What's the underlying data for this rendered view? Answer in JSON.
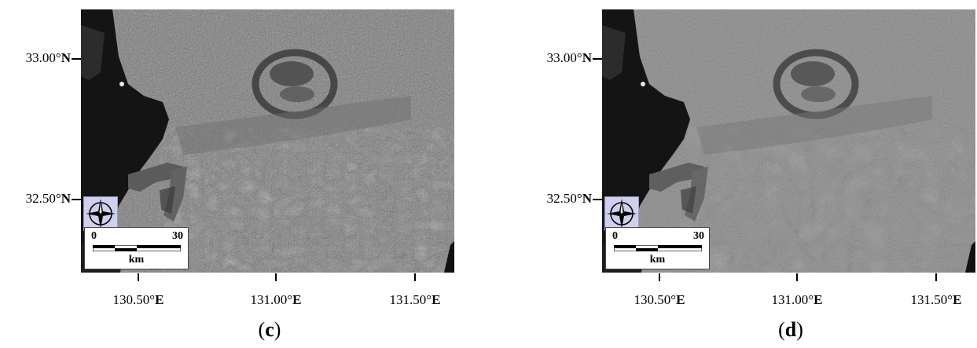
{
  "panels": [
    {
      "caption_letter": "c",
      "lat_labels": [
        {
          "value": "33.00°",
          "hemi": "N"
        },
        {
          "value": "32.50°",
          "hemi": "N"
        }
      ],
      "lon_labels": [
        {
          "value": "130.50°",
          "hemi": "E"
        },
        {
          "value": "131.00°",
          "hemi": "E"
        },
        {
          "value": "131.50°",
          "hemi": "E"
        }
      ],
      "scale": {
        "start": "0",
        "end": "30",
        "unit": "km"
      },
      "icon": "compass-rose-icon"
    },
    {
      "caption_letter": "d",
      "lat_labels": [
        {
          "value": "33.00°",
          "hemi": "N"
        },
        {
          "value": "32.50°",
          "hemi": "N"
        }
      ],
      "lon_labels": [
        {
          "value": "130.50°",
          "hemi": "E"
        },
        {
          "value": "131.00°",
          "hemi": "E"
        },
        {
          "value": "131.50°",
          "hemi": "E"
        }
      ],
      "scale": {
        "start": "0",
        "end": "30",
        "unit": "km"
      },
      "icon": "compass-rose-icon"
    }
  ],
  "colors": {
    "land_c": "#7b7b7b",
    "land_d": "#868686",
    "water": "#141414",
    "lake": "#4a4a4a",
    "compass_bg": "#cfd0ee"
  }
}
